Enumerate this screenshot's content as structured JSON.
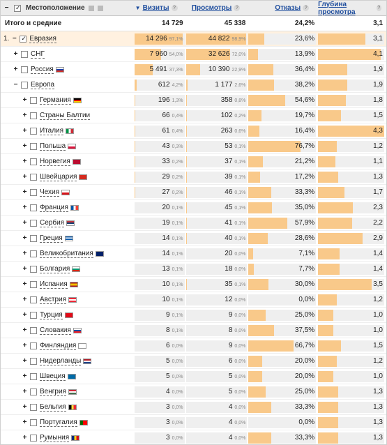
{
  "header": {
    "location_label": "Местоположение",
    "visits_label": "Визиты",
    "views_label": "Просмотры",
    "bounces_label": "Отказы",
    "depth_label": "Глубина просмотра",
    "sort_indicator": "▼",
    "help": "?"
  },
  "totals": {
    "label": "Итого и средние",
    "visits": "14 729",
    "views": "45 338",
    "bounces": "24,2%",
    "depth": "3,1"
  },
  "colors": {
    "bar": "#f9c98a",
    "highlight": "#fff1e0",
    "link": "#1f4e9e"
  },
  "rows": [
    {
      "level": 0,
      "prefix": "1.",
      "exp": "−",
      "checked": true,
      "name": "Евразия",
      "flag": "",
      "v": "14 296",
      "vp": "97,1%",
      "vf": 0.971,
      "p": "44 822",
      "pp": "98,9%",
      "pf": 0.989,
      "b": "23,6%",
      "bf": 0.236,
      "d": "3,1",
      "df": 0.72
    },
    {
      "level": 1,
      "exp": "+",
      "checked": false,
      "name": "СНГ",
      "flag": "",
      "v": "7 960",
      "vp": "54,0%",
      "vf": 0.54,
      "p": "32 626",
      "pp": "72,0%",
      "pf": 0.72,
      "b": "13,9%",
      "bf": 0.139,
      "d": "4,1",
      "df": 0.95
    },
    {
      "level": 1,
      "exp": "+",
      "checked": false,
      "name": "Россия",
      "flag": "ru",
      "v": "5 491",
      "vp": "37,3%",
      "vf": 0.373,
      "p": "10 390",
      "pp": "22,9%",
      "pf": 0.229,
      "b": "36,4%",
      "bf": 0.364,
      "d": "1,9",
      "df": 0.44
    },
    {
      "level": 1,
      "exp": "−",
      "checked": false,
      "name": "Европа",
      "flag": "",
      "v": "612",
      "vp": "4,2%",
      "vf": 0.042,
      "p": "1 177",
      "pp": "2,6%",
      "pf": 0.026,
      "b": "38,2%",
      "bf": 0.382,
      "d": "1,9",
      "df": 0.44
    },
    {
      "level": 2,
      "exp": "+",
      "checked": false,
      "name": "Германия",
      "flag": "de",
      "v": "196",
      "vp": "1,3%",
      "vf": 0.013,
      "p": "358",
      "pp": "0,8%",
      "pf": 0.008,
      "b": "54,6%",
      "bf": 0.546,
      "d": "1,8",
      "df": 0.42
    },
    {
      "level": 2,
      "exp": "+",
      "checked": false,
      "name": "Страны Балтии",
      "flag": "",
      "v": "66",
      "vp": "0,4%",
      "vf": 0.004,
      "p": "102",
      "pp": "0,2%",
      "pf": 0.002,
      "b": "19,7%",
      "bf": 0.197,
      "d": "1,5",
      "df": 0.35
    },
    {
      "level": 2,
      "exp": "+",
      "checked": false,
      "name": "Италия",
      "flag": "it",
      "v": "61",
      "vp": "0,4%",
      "vf": 0.004,
      "p": "263",
      "pp": "0,6%",
      "pf": 0.006,
      "b": "16,4%",
      "bf": 0.164,
      "d": "4,3",
      "df": 1.0
    },
    {
      "level": 2,
      "exp": "+",
      "checked": false,
      "name": "Польша",
      "flag": "pl",
      "v": "43",
      "vp": "0,3%",
      "vf": 0.003,
      "p": "53",
      "pp": "0,1%",
      "pf": 0.001,
      "b": "76,7%",
      "bf": 0.767,
      "d": "1,2",
      "df": 0.28
    },
    {
      "level": 2,
      "exp": "+",
      "checked": false,
      "name": "Норвегия",
      "flag": "no",
      "v": "33",
      "vp": "0,2%",
      "vf": 0.002,
      "p": "37",
      "pp": "0,1%",
      "pf": 0.001,
      "b": "21,2%",
      "bf": 0.212,
      "d": "1,1",
      "df": 0.26
    },
    {
      "level": 2,
      "exp": "+",
      "checked": false,
      "name": "Швейцария",
      "flag": "ch",
      "v": "29",
      "vp": "0,2%",
      "vf": 0.002,
      "p": "39",
      "pp": "0,1%",
      "pf": 0.001,
      "b": "17,2%",
      "bf": 0.172,
      "d": "1,3",
      "df": 0.3
    },
    {
      "level": 2,
      "exp": "+",
      "checked": false,
      "name": "Чехия",
      "flag": "cz",
      "v": "27",
      "vp": "0,2%",
      "vf": 0.002,
      "p": "46",
      "pp": "0,1%",
      "pf": 0.001,
      "b": "33,3%",
      "bf": 0.333,
      "d": "1,7",
      "df": 0.4
    },
    {
      "level": 2,
      "exp": "+",
      "checked": false,
      "name": "Франция",
      "flag": "fr",
      "v": "20",
      "vp": "0,1%",
      "vf": 0.001,
      "p": "45",
      "pp": "0,1%",
      "pf": 0.001,
      "b": "35,0%",
      "bf": 0.35,
      "d": "2,3",
      "df": 0.53
    },
    {
      "level": 2,
      "exp": "+",
      "checked": false,
      "name": "Сербия",
      "flag": "rs",
      "v": "19",
      "vp": "0,1%",
      "vf": 0.001,
      "p": "41",
      "pp": "0,1%",
      "pf": 0.001,
      "b": "57,9%",
      "bf": 0.579,
      "d": "2,2",
      "df": 0.51
    },
    {
      "level": 2,
      "exp": "+",
      "checked": false,
      "name": "Греция",
      "flag": "gr",
      "v": "14",
      "vp": "0,1%",
      "vf": 0.001,
      "p": "40",
      "pp": "0,1%",
      "pf": 0.001,
      "b": "28,6%",
      "bf": 0.286,
      "d": "2,9",
      "df": 0.67
    },
    {
      "level": 2,
      "exp": "+",
      "checked": false,
      "name": "Великобритания",
      "flag": "gb",
      "v": "14",
      "vp": "0,1%",
      "vf": 0.001,
      "p": "20",
      "pp": "0,0%",
      "pf": 0.0,
      "b": "7,1%",
      "bf": 0.071,
      "d": "1,4",
      "df": 0.33
    },
    {
      "level": 2,
      "exp": "+",
      "checked": false,
      "name": "Болгария",
      "flag": "bg",
      "v": "13",
      "vp": "0,1%",
      "vf": 0.001,
      "p": "18",
      "pp": "0,0%",
      "pf": 0.0,
      "b": "7,7%",
      "bf": 0.077,
      "d": "1,4",
      "df": 0.33
    },
    {
      "level": 2,
      "exp": "+",
      "checked": false,
      "name": "Испания",
      "flag": "es",
      "v": "10",
      "vp": "0,1%",
      "vf": 0.001,
      "p": "35",
      "pp": "0,1%",
      "pf": 0.001,
      "b": "30,0%",
      "bf": 0.3,
      "d": "3,5",
      "df": 0.81
    },
    {
      "level": 2,
      "exp": "+",
      "checked": false,
      "name": "Австрия",
      "flag": "at",
      "v": "10",
      "vp": "0,1%",
      "vf": 0.001,
      "p": "12",
      "pp": "0,0%",
      "pf": 0.0,
      "b": "0,0%",
      "bf": 0.0,
      "d": "1,2",
      "df": 0.28
    },
    {
      "level": 2,
      "exp": "+",
      "checked": false,
      "name": "Турция",
      "flag": "tr",
      "v": "9",
      "vp": "0,1%",
      "vf": 0.001,
      "p": "9",
      "pp": "0,0%",
      "pf": 0.0,
      "b": "25,0%",
      "bf": 0.25,
      "d": "1,0",
      "df": 0.23
    },
    {
      "level": 2,
      "exp": "+",
      "checked": false,
      "name": "Словакия",
      "flag": "sk",
      "v": "8",
      "vp": "0,1%",
      "vf": 0.001,
      "p": "8",
      "pp": "0,0%",
      "pf": 0.0,
      "b": "37,5%",
      "bf": 0.375,
      "d": "1,0",
      "df": 0.23
    },
    {
      "level": 2,
      "exp": "+",
      "checked": false,
      "name": "Финляндия",
      "flag": "fi",
      "v": "6",
      "vp": "0,0%",
      "vf": 0.0,
      "p": "9",
      "pp": "0,0%",
      "pf": 0.0,
      "b": "66,7%",
      "bf": 0.667,
      "d": "1,5",
      "df": 0.35
    },
    {
      "level": 2,
      "exp": "+",
      "checked": false,
      "name": "Нидерланды",
      "flag": "nl",
      "v": "5",
      "vp": "0,0%",
      "vf": 0.0,
      "p": "6",
      "pp": "0,0%",
      "pf": 0.0,
      "b": "20,0%",
      "bf": 0.2,
      "d": "1,2",
      "df": 0.28
    },
    {
      "level": 2,
      "exp": "+",
      "checked": false,
      "name": "Швеция",
      "flag": "se",
      "v": "5",
      "vp": "0,0%",
      "vf": 0.0,
      "p": "5",
      "pp": "0,0%",
      "pf": 0.0,
      "b": "20,0%",
      "bf": 0.2,
      "d": "1,0",
      "df": 0.23
    },
    {
      "level": 2,
      "exp": "+",
      "checked": false,
      "name": "Венгрия",
      "flag": "hu",
      "v": "4",
      "vp": "0,0%",
      "vf": 0.0,
      "p": "5",
      "pp": "0,0%",
      "pf": 0.0,
      "b": "25,0%",
      "bf": 0.25,
      "d": "1,3",
      "df": 0.3
    },
    {
      "level": 2,
      "exp": "+",
      "checked": false,
      "name": "Бельгия",
      "flag": "be",
      "v": "3",
      "vp": "0,0%",
      "vf": 0.0,
      "p": "4",
      "pp": "0,0%",
      "pf": 0.0,
      "b": "33,3%",
      "bf": 0.333,
      "d": "1,3",
      "df": 0.3
    },
    {
      "level": 2,
      "exp": "+",
      "checked": false,
      "name": "Португалия",
      "flag": "pt",
      "v": "3",
      "vp": "0,0%",
      "vf": 0.0,
      "p": "4",
      "pp": "0,0%",
      "pf": 0.0,
      "b": "0,0%",
      "bf": 0.0,
      "d": "1,3",
      "df": 0.3
    },
    {
      "level": 2,
      "exp": "+",
      "checked": false,
      "name": "Румыния",
      "flag": "ro",
      "v": "3",
      "vp": "0,0%",
      "vf": 0.0,
      "p": "4",
      "pp": "0,0%",
      "pf": 0.0,
      "b": "33,3%",
      "bf": 0.333,
      "d": "1,3",
      "df": 0.3
    }
  ],
  "flags": {
    "ru": "linear-gradient(#fff 33%,#1c3faa 33% 66%,#d52b1e 66%)",
    "de": "linear-gradient(#000 33%,#dd0000 33% 66%,#ffce00 66%)",
    "it": "linear-gradient(90deg,#009246 33%,#fff 33% 66%,#ce2b37 66%)",
    "pl": "linear-gradient(#fff 50%,#dc143c 50%)",
    "no": "linear-gradient(#ba0c2f,#ba0c2f)",
    "ch": "linear-gradient(#d52b1e,#d52b1e)",
    "cz": "linear-gradient(#fff 50%,#d7141a 50%)",
    "fr": "linear-gradient(90deg,#0055a4 33%,#fff 33% 66%,#ef4135 66%)",
    "rs": "linear-gradient(#c6363c 33%,#0c4076 33% 66%,#fff 66%)",
    "gr": "repeating-linear-gradient(#0d5eaf 0 1.6px,#fff 1.6px 3.2px)",
    "gb": "linear-gradient(#012169,#012169)",
    "bg": "linear-gradient(#fff 33%,#00966e 33% 66%,#d62612 66%)",
    "es": "linear-gradient(#aa151b 25%,#f1bf00 25% 75%,#aa151b 75%)",
    "at": "linear-gradient(#ed2939 33%,#fff 33% 66%,#ed2939 66%)",
    "tr": "linear-gradient(#e30a17,#e30a17)",
    "sk": "linear-gradient(#fff 33%,#0b4ea2 33% 66%,#ee1c25 66%)",
    "fi": "linear-gradient(#fff,#fff)",
    "nl": "linear-gradient(#ae1c28 33%,#fff 33% 66%,#21468b 66%)",
    "se": "linear-gradient(#006aa7,#006aa7)",
    "hu": "linear-gradient(#ce2939 33%,#fff 33% 66%,#477050 66%)",
    "be": "linear-gradient(90deg,#000 33%,#fae042 33% 66%,#ed2939 66%)",
    "pt": "linear-gradient(90deg,#006600 40%,#ff0000 40%)",
    "ro": "linear-gradient(90deg,#002b7f 33%,#fcd116 33% 66%,#ce1126 66%)"
  }
}
